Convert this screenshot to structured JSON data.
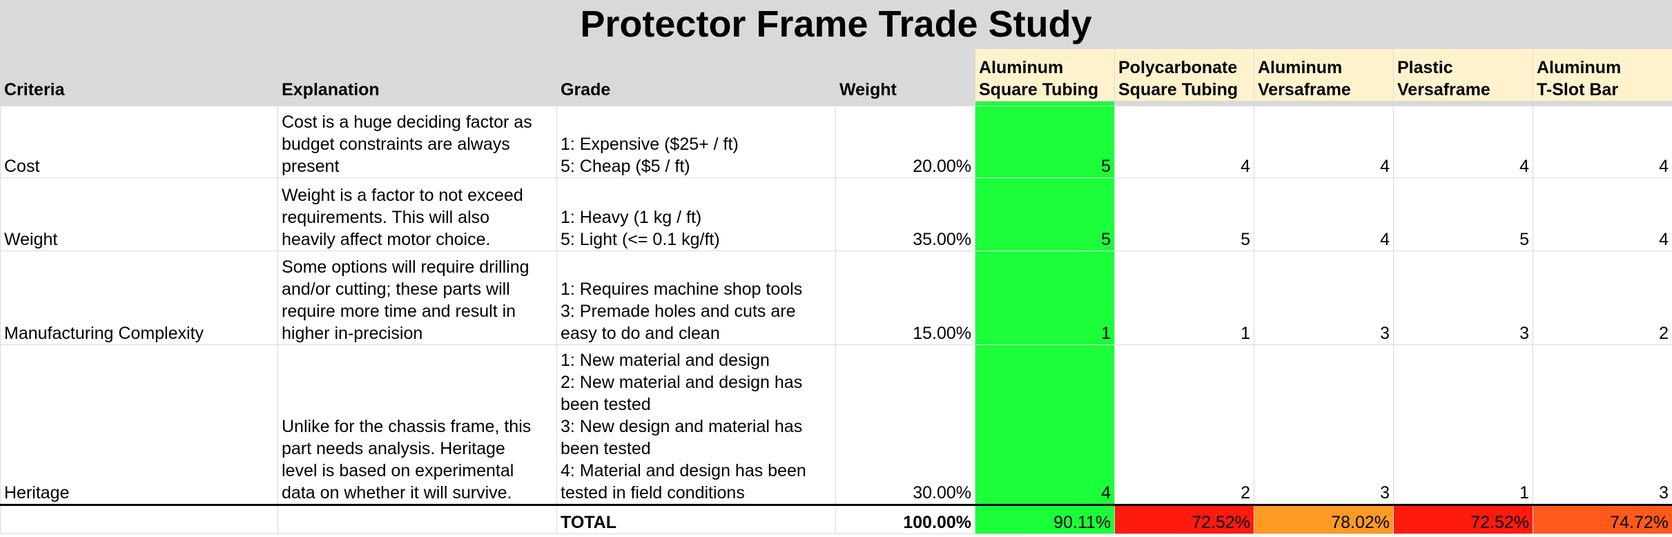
{
  "title": "Protector Frame Trade Study",
  "headers": {
    "criteria": "Criteria",
    "explanation": "Explanation",
    "grade": "Grade",
    "weight": "Weight",
    "options": [
      [
        "Aluminum",
        "Square Tubing"
      ],
      [
        "Polycarbonate",
        "Square Tubing"
      ],
      [
        "Aluminum",
        "Versaframe"
      ],
      [
        "Plastic",
        "Versaframe"
      ],
      [
        "Aluminum",
        "T-Slot Bar"
      ]
    ]
  },
  "rows": [
    {
      "criteria": "Cost",
      "explanation": [
        "Cost is a huge deciding factor as",
        "budget constraints are always",
        "present"
      ],
      "grade": [
        "1: Expensive ($25+ / ft)",
        "5: Cheap ($5 / ft)"
      ],
      "weight": "20.00%",
      "scores": [
        "5",
        "4",
        "4",
        "4",
        "4"
      ]
    },
    {
      "criteria": "Weight",
      "explanation": [
        "Weight is a factor to not exceed",
        "requirements. This will also",
        "heavily affect motor choice."
      ],
      "grade": [
        "1: Heavy (1 kg / ft)",
        "5: Light (<= 0.1 kg/ft)"
      ],
      "weight": "35.00%",
      "scores": [
        "5",
        "5",
        "4",
        "5",
        "4"
      ]
    },
    {
      "criteria": "Manufacturing Complexity",
      "explanation": [
        "Some options will require drilling",
        "and/or cutting; these parts will",
        "require more time and result in",
        "higher in-precision"
      ],
      "grade": [
        "1: Requires machine shop tools",
        "3: Premade holes and cuts are",
        "easy to do and clean"
      ],
      "weight": "15.00%",
      "scores": [
        "1",
        "1",
        "3",
        "3",
        "2"
      ]
    },
    {
      "criteria": "Heritage",
      "explanation": [
        "Unlike for the chassis frame, this",
        "part needs analysis. Heritage",
        "level is based on experimental",
        "data on whether it will survive."
      ],
      "grade": [
        "1: New material and design",
        "2: New material and design has",
        "been tested",
        "3: New design and material has",
        "been tested",
        "4: Material and design has been",
        "tested in field conditions"
      ],
      "weight": "30.00%",
      "scores": [
        "4",
        "2",
        "3",
        "1",
        "3"
      ]
    }
  ],
  "total": {
    "label": "TOTAL",
    "weight": "100.00%",
    "scores": [
      "90.11%",
      "72.52%",
      "78.02%",
      "72.52%",
      "74.72%"
    ]
  },
  "colors": {
    "header_gray": "#d9d9d9",
    "option_header": "#fff2cc",
    "best": "#1aff3a",
    "worst": "#ff1a0f",
    "middle": "#ff9a24",
    "mid_low": "#ff5a1a"
  },
  "total_colors": [
    "#1aff3a",
    "#ff1a0f",
    "#ff9a24",
    "#ff1a0f",
    "#ff5a1a"
  ]
}
